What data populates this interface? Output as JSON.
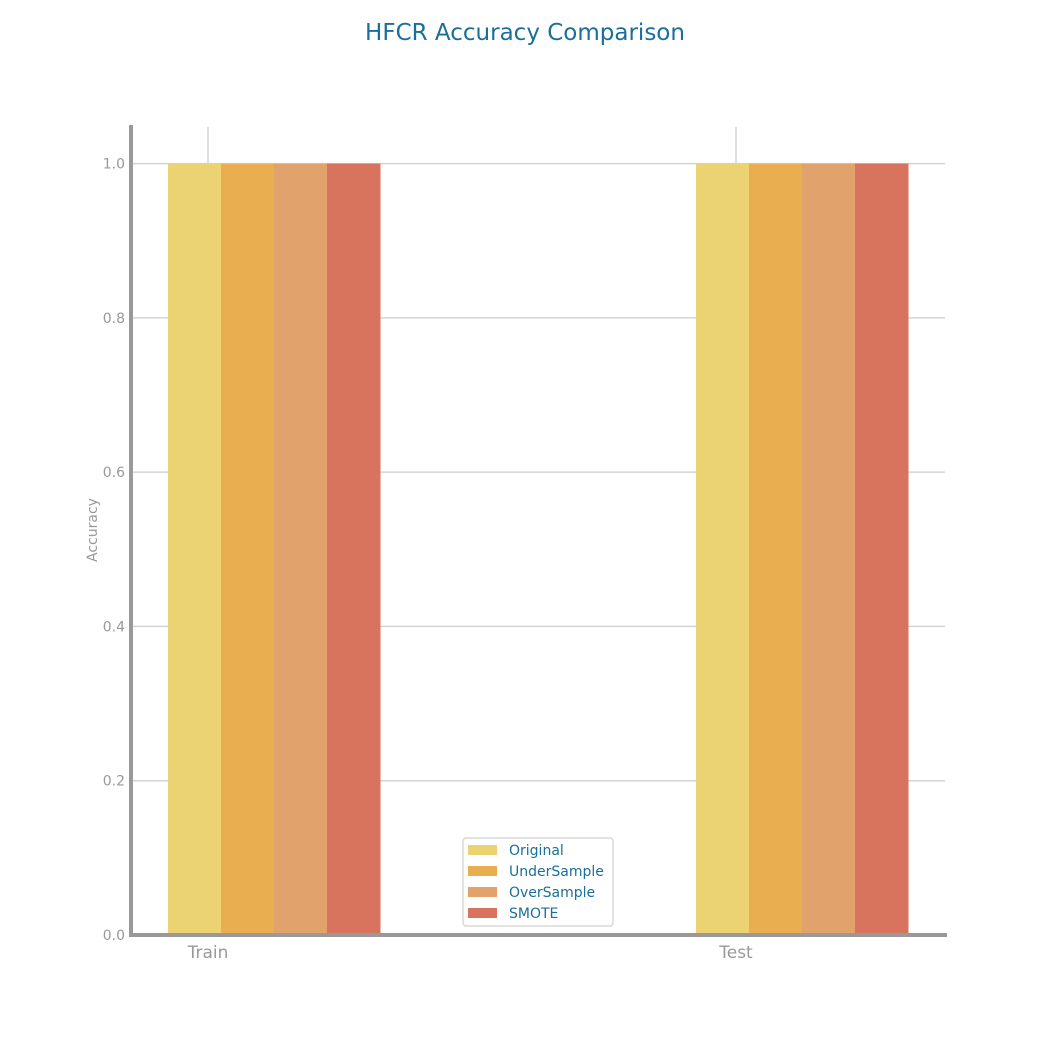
{
  "chart_data": {
    "type": "bar",
    "title": "HFCR Accuracy Comparison",
    "xlabel": "",
    "ylabel": "Accuracy",
    "categories": [
      "Train",
      "Test"
    ],
    "series": [
      {
        "name": "Original",
        "values": [
          1.0,
          1.0
        ],
        "color": "#ebd272"
      },
      {
        "name": "UnderSample",
        "values": [
          1.0,
          1.0
        ],
        "color": "#e8ae4f"
      },
      {
        "name": "OverSample",
        "values": [
          1.0,
          1.0
        ],
        "color": "#e2a26b"
      },
      {
        "name": "SMOTE",
        "values": [
          1.0,
          1.0
        ],
        "color": "#d8735e"
      }
    ],
    "ylim": [
      0,
      1.05
    ],
    "yticks": [
      "0.0",
      "0.2",
      "0.4",
      "0.6",
      "0.8",
      "1.0"
    ],
    "grid": "horizontal",
    "legend_position": "lower-center",
    "colors": {
      "title": "#1a6f9a",
      "axis": "#999999",
      "tick_text": "#999999",
      "grid": "#d0d4d8",
      "legend_text": "#1a6f9a",
      "legend_border": "#d8d8d8"
    }
  }
}
